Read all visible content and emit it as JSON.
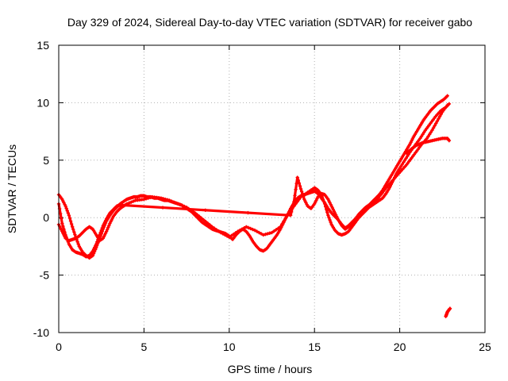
{
  "chart_data": {
    "type": "scatter",
    "title": "Day 329 of 2024, Sidereal Day-to-day VTEC variation (SDTVAR) for receiver gabo",
    "xlabel": "GPS time / hours",
    "ylabel": "SDTVAR / TECUs",
    "xlim": [
      0,
      25
    ],
    "ylim": [
      -10,
      15
    ],
    "xticks": [
      0,
      5,
      10,
      15,
      20,
      25
    ],
    "yticks": [
      -10,
      -5,
      0,
      5,
      10,
      15
    ],
    "grid": true,
    "marker": "plus",
    "colors": {
      "series": "#ff0000",
      "grid": "#b0b0b0",
      "frame": "#000000"
    },
    "series": [
      {
        "name": "track-a",
        "x": [
          0.0,
          0.2,
          0.4,
          0.6,
          0.8,
          1.0,
          1.2,
          1.4,
          1.6,
          1.8,
          2.0,
          2.2,
          2.4,
          2.6,
          2.8,
          3.0,
          3.2,
          3.4,
          3.6,
          3.8,
          4.0,
          4.2,
          4.4,
          4.6,
          4.8,
          5.0,
          5.2,
          5.4,
          5.6,
          5.8,
          6.0,
          6.2,
          6.4,
          6.6,
          6.8,
          7.0,
          7.2,
          7.4,
          7.6,
          7.8,
          8.0,
          8.2,
          8.4,
          8.6,
          8.8,
          9.0,
          9.2,
          9.4,
          9.6,
          9.8,
          10.0,
          10.2,
          10.4,
          10.6,
          10.8,
          11.0,
          11.2,
          11.4,
          11.6,
          11.8,
          12.0,
          12.2,
          12.4,
          12.6,
          12.8,
          13.0,
          13.2,
          13.4,
          13.6,
          13.8,
          14.0,
          14.2,
          14.4,
          14.6,
          14.8,
          15.0,
          15.2,
          15.4,
          15.6,
          15.8,
          16.0,
          16.2,
          16.4,
          16.6,
          16.8,
          17.0,
          17.2,
          17.4,
          17.6,
          17.8,
          18.0,
          18.2,
          18.4,
          18.6,
          18.8,
          19.0,
          19.2,
          19.4,
          19.6,
          19.8,
          20.0,
          20.2,
          20.4,
          20.6,
          20.8,
          21.0,
          21.2,
          21.4,
          21.6,
          21.8,
          22.0,
          22.2,
          22.4,
          22.6,
          22.8
        ],
        "y": [
          2.0,
          1.6,
          1.0,
          0.2,
          -0.8,
          -1.7,
          -2.5,
          -3.0,
          -3.3,
          -3.5,
          -3.3,
          -2.6,
          -1.8,
          -1.0,
          -0.3,
          0.2,
          0.6,
          0.9,
          1.2,
          1.4,
          1.6,
          1.7,
          1.8,
          1.8,
          1.9,
          1.9,
          1.8,
          1.8,
          1.7,
          1.7,
          1.6,
          1.5,
          1.5,
          1.4,
          1.3,
          1.2,
          1.1,
          0.9,
          0.7,
          0.5,
          0.2,
          -0.1,
          -0.4,
          -0.6,
          -0.8,
          -1.0,
          -1.1,
          -1.2,
          -1.3,
          -1.4,
          -1.6,
          -1.9,
          -1.5,
          -1.2,
          -1.0,
          -1.2,
          -1.6,
          -2.1,
          -2.5,
          -2.8,
          -2.9,
          -2.7,
          -2.3,
          -1.9,
          -1.5,
          -1.0,
          -0.4,
          0.2,
          0.8,
          1.3,
          1.7,
          1.9,
          2.0,
          2.1,
          2.2,
          2.3,
          2.1,
          1.7,
          1.3,
          0.8,
          0.4,
          0.1,
          -0.2,
          -0.6,
          -0.9,
          -0.7,
          -0.4,
          -0.1,
          0.3,
          0.6,
          0.9,
          1.1,
          1.4,
          1.7,
          2.0,
          2.4,
          2.9,
          3.4,
          3.9,
          4.4,
          4.9,
          5.4,
          5.9,
          6.4,
          7.0,
          7.5,
          8.0,
          8.5,
          8.9,
          9.3,
          9.6,
          9.9,
          10.1,
          10.3,
          10.6
        ]
      },
      {
        "name": "track-b",
        "x": [
          0.0,
          0.2,
          0.4,
          0.6,
          0.8,
          1.0,
          1.2,
          1.4,
          1.6,
          1.8,
          2.0,
          2.2,
          2.4,
          2.6,
          2.8,
          3.0,
          3.2,
          3.4,
          3.6,
          3.8,
          4.0,
          4.5,
          5.0,
          5.5,
          6.0,
          6.5,
          7.0,
          7.5,
          8.0,
          8.5,
          9.0,
          9.5,
          10.0,
          10.5,
          11.0,
          11.5,
          12.0,
          12.5,
          13.0,
          13.4,
          13.8,
          14.2,
          14.6,
          15.0,
          15.2,
          15.4,
          15.6,
          15.8,
          16.0,
          16.2,
          16.4,
          16.6,
          16.8,
          17.0,
          17.2,
          17.4,
          17.6,
          17.8,
          18.0,
          18.2,
          18.4,
          18.6,
          18.8,
          19.0,
          19.2,
          19.4,
          19.6,
          19.8,
          20.0,
          20.3,
          20.6,
          20.9,
          21.2,
          21.5,
          21.8,
          22.1,
          22.4,
          22.7,
          22.9
        ],
        "y": [
          -0.6,
          -1.2,
          -1.8,
          -2.0,
          -1.9,
          -1.8,
          -1.6,
          -1.3,
          -1.0,
          -0.8,
          -1.0,
          -1.5,
          -2.0,
          -1.8,
          -1.2,
          -0.5,
          0.1,
          0.5,
          0.8,
          1.0,
          1.2,
          1.5,
          1.6,
          1.8,
          1.7,
          1.5,
          1.2,
          0.9,
          0.4,
          -0.2,
          -0.8,
          -1.3,
          -1.7,
          -1.2,
          -0.8,
          -1.1,
          -1.5,
          -1.3,
          -0.8,
          0.2,
          1.0,
          1.8,
          2.2,
          2.6,
          2.4,
          2.0,
          1.2,
          0.2,
          -0.6,
          -1.1,
          -1.4,
          -1.5,
          -1.4,
          -1.2,
          -0.8,
          -0.4,
          0.0,
          0.3,
          0.6,
          0.9,
          1.1,
          1.3,
          1.5,
          1.7,
          2.1,
          2.6,
          3.2,
          3.8,
          4.3,
          5.0,
          5.7,
          6.3,
          6.9,
          7.6,
          8.2,
          8.8,
          9.3,
          9.6,
          9.9
        ]
      },
      {
        "name": "track-c",
        "x": [
          0.0,
          0.2,
          0.4,
          0.6,
          0.8,
          1.0,
          1.2,
          1.4,
          1.6,
          1.8,
          2.0,
          2.2,
          2.4,
          2.6,
          2.8,
          3.0,
          3.2,
          3.4,
          3.6,
          13.6,
          13.8,
          14.0,
          14.2,
          14.4,
          14.6,
          14.8,
          15.0,
          15.2,
          15.4,
          15.6,
          15.8,
          16.0,
          16.2,
          16.4,
          16.6,
          16.8,
          17.0,
          17.2,
          17.4,
          17.6,
          17.8,
          18.0,
          18.3,
          18.6,
          18.9,
          19.2,
          19.5,
          19.8,
          20.1,
          20.4,
          20.7,
          21.0,
          21.3,
          21.6,
          21.9,
          22.2,
          22.5,
          22.8
        ],
        "y": [
          1.2,
          -0.5,
          -1.5,
          -2.3,
          -2.8,
          -3.0,
          -3.1,
          -3.2,
          -3.4,
          -3.3,
          -2.9,
          -2.3,
          -1.5,
          -0.7,
          -0.1,
          0.4,
          0.7,
          1.0,
          1.1,
          0.2,
          1.4,
          3.5,
          2.5,
          1.6,
          1.0,
          0.8,
          1.2,
          1.8,
          2.1,
          2.0,
          1.6,
          1.0,
          0.4,
          -0.2,
          -0.7,
          -1.0,
          -0.8,
          -0.5,
          -0.2,
          0.1,
          0.5,
          0.8,
          1.1,
          1.5,
          2.0,
          2.6,
          3.1,
          3.6,
          4.1,
          4.6,
          5.2,
          5.8,
          6.4,
          6.9,
          7.6,
          8.4,
          9.2,
          9.8
        ]
      },
      {
        "name": "track-d",
        "x": [
          20.4,
          20.7,
          21.0,
          21.3,
          21.6,
          21.9,
          22.2,
          22.5,
          22.8,
          22.9
        ],
        "y": [
          5.6,
          6.0,
          6.3,
          6.5,
          6.6,
          6.7,
          6.8,
          6.9,
          6.9,
          6.7
        ]
      },
      {
        "name": "late-segment",
        "x": [
          22.7,
          22.75,
          22.8,
          22.85,
          22.9,
          22.95
        ],
        "y": [
          -8.6,
          -8.4,
          -8.2,
          -8.1,
          -8.0,
          -7.9
        ]
      }
    ]
  }
}
